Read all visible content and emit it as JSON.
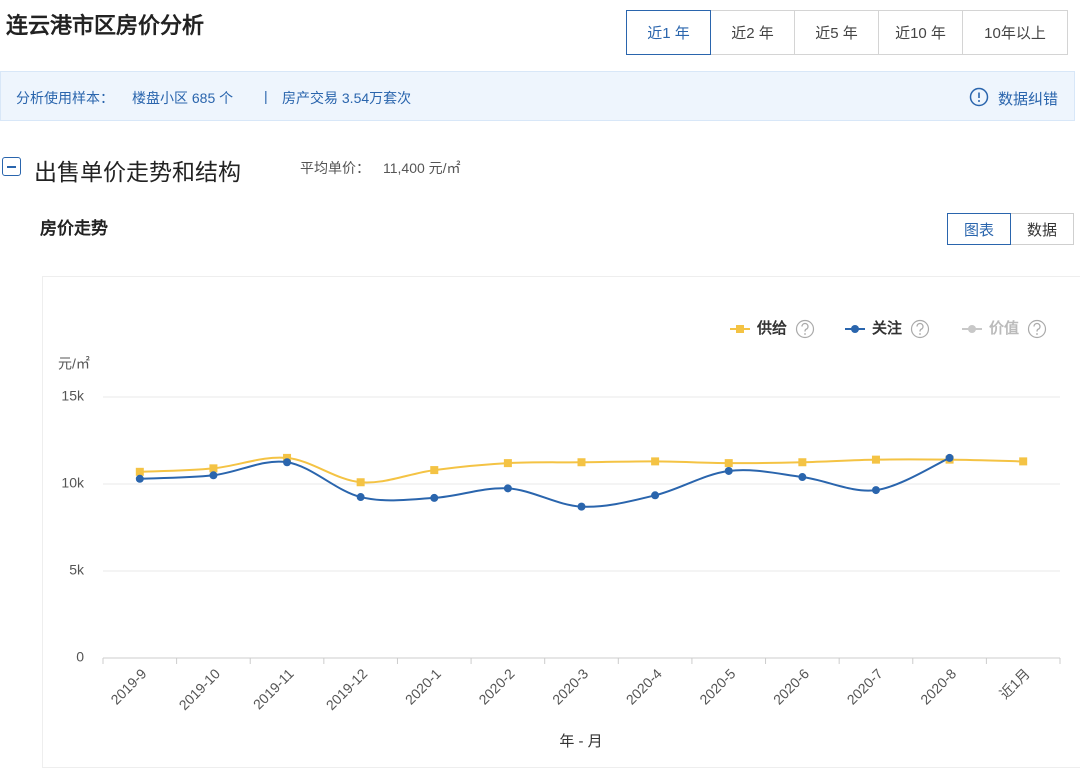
{
  "header": {
    "title": "连云港市区房价分析",
    "tabs": [
      "近1 年",
      "近2 年",
      "近5 年",
      "近10 年",
      "10年以上"
    ]
  },
  "info_bar": {
    "label": "分析使用样本：",
    "sample": "楼盘小区 685 个",
    "separator": "|",
    "trades": "房产交易 3.54万套次",
    "action": "数据纠错"
  },
  "section": {
    "title": "出售单价走势和结构",
    "avg_label": "平均单价：",
    "avg_value": "11,400 元/㎡"
  },
  "subsection": {
    "title": "房价走势",
    "toggles": [
      "图表",
      "数据"
    ]
  },
  "chart_data": {
    "type": "line",
    "y_axis_label": "元/㎡",
    "x_axis_label": "年 - 月",
    "categories": [
      "2019-9",
      "2019-10",
      "2019-11",
      "2019-12",
      "2020-1",
      "2020-2",
      "2020-3",
      "2020-4",
      "2020-5",
      "2020-6",
      "2020-7",
      "2020-8",
      "近1月"
    ],
    "series": [
      {
        "name": "供给",
        "color": "#f4c344",
        "marker": "square",
        "values": [
          10700,
          10900,
          11500,
          10100,
          10800,
          11200,
          11250,
          11300,
          11200,
          11250,
          11400,
          11400,
          11300
        ]
      },
      {
        "name": "关注",
        "color": "#2a65ad",
        "marker": "circle",
        "values": [
          10300,
          10500,
          11250,
          9250,
          9200,
          9750,
          8700,
          9350,
          10750,
          10400,
          9650,
          11500,
          null
        ]
      },
      {
        "name": "价值",
        "color": "#c8c8c8",
        "marker": "circle",
        "values": [
          null,
          null,
          null,
          null,
          null,
          null,
          null,
          null,
          null,
          null,
          null,
          null,
          null
        ]
      }
    ],
    "ylim": [
      0,
      15000
    ],
    "yticks": [
      {
        "value": 0,
        "label": "0"
      },
      {
        "value": 5000,
        "label": "5k"
      },
      {
        "value": 10000,
        "label": "10k"
      },
      {
        "value": 15000,
        "label": "15k"
      }
    ],
    "grid": true,
    "legend": "top-right"
  }
}
